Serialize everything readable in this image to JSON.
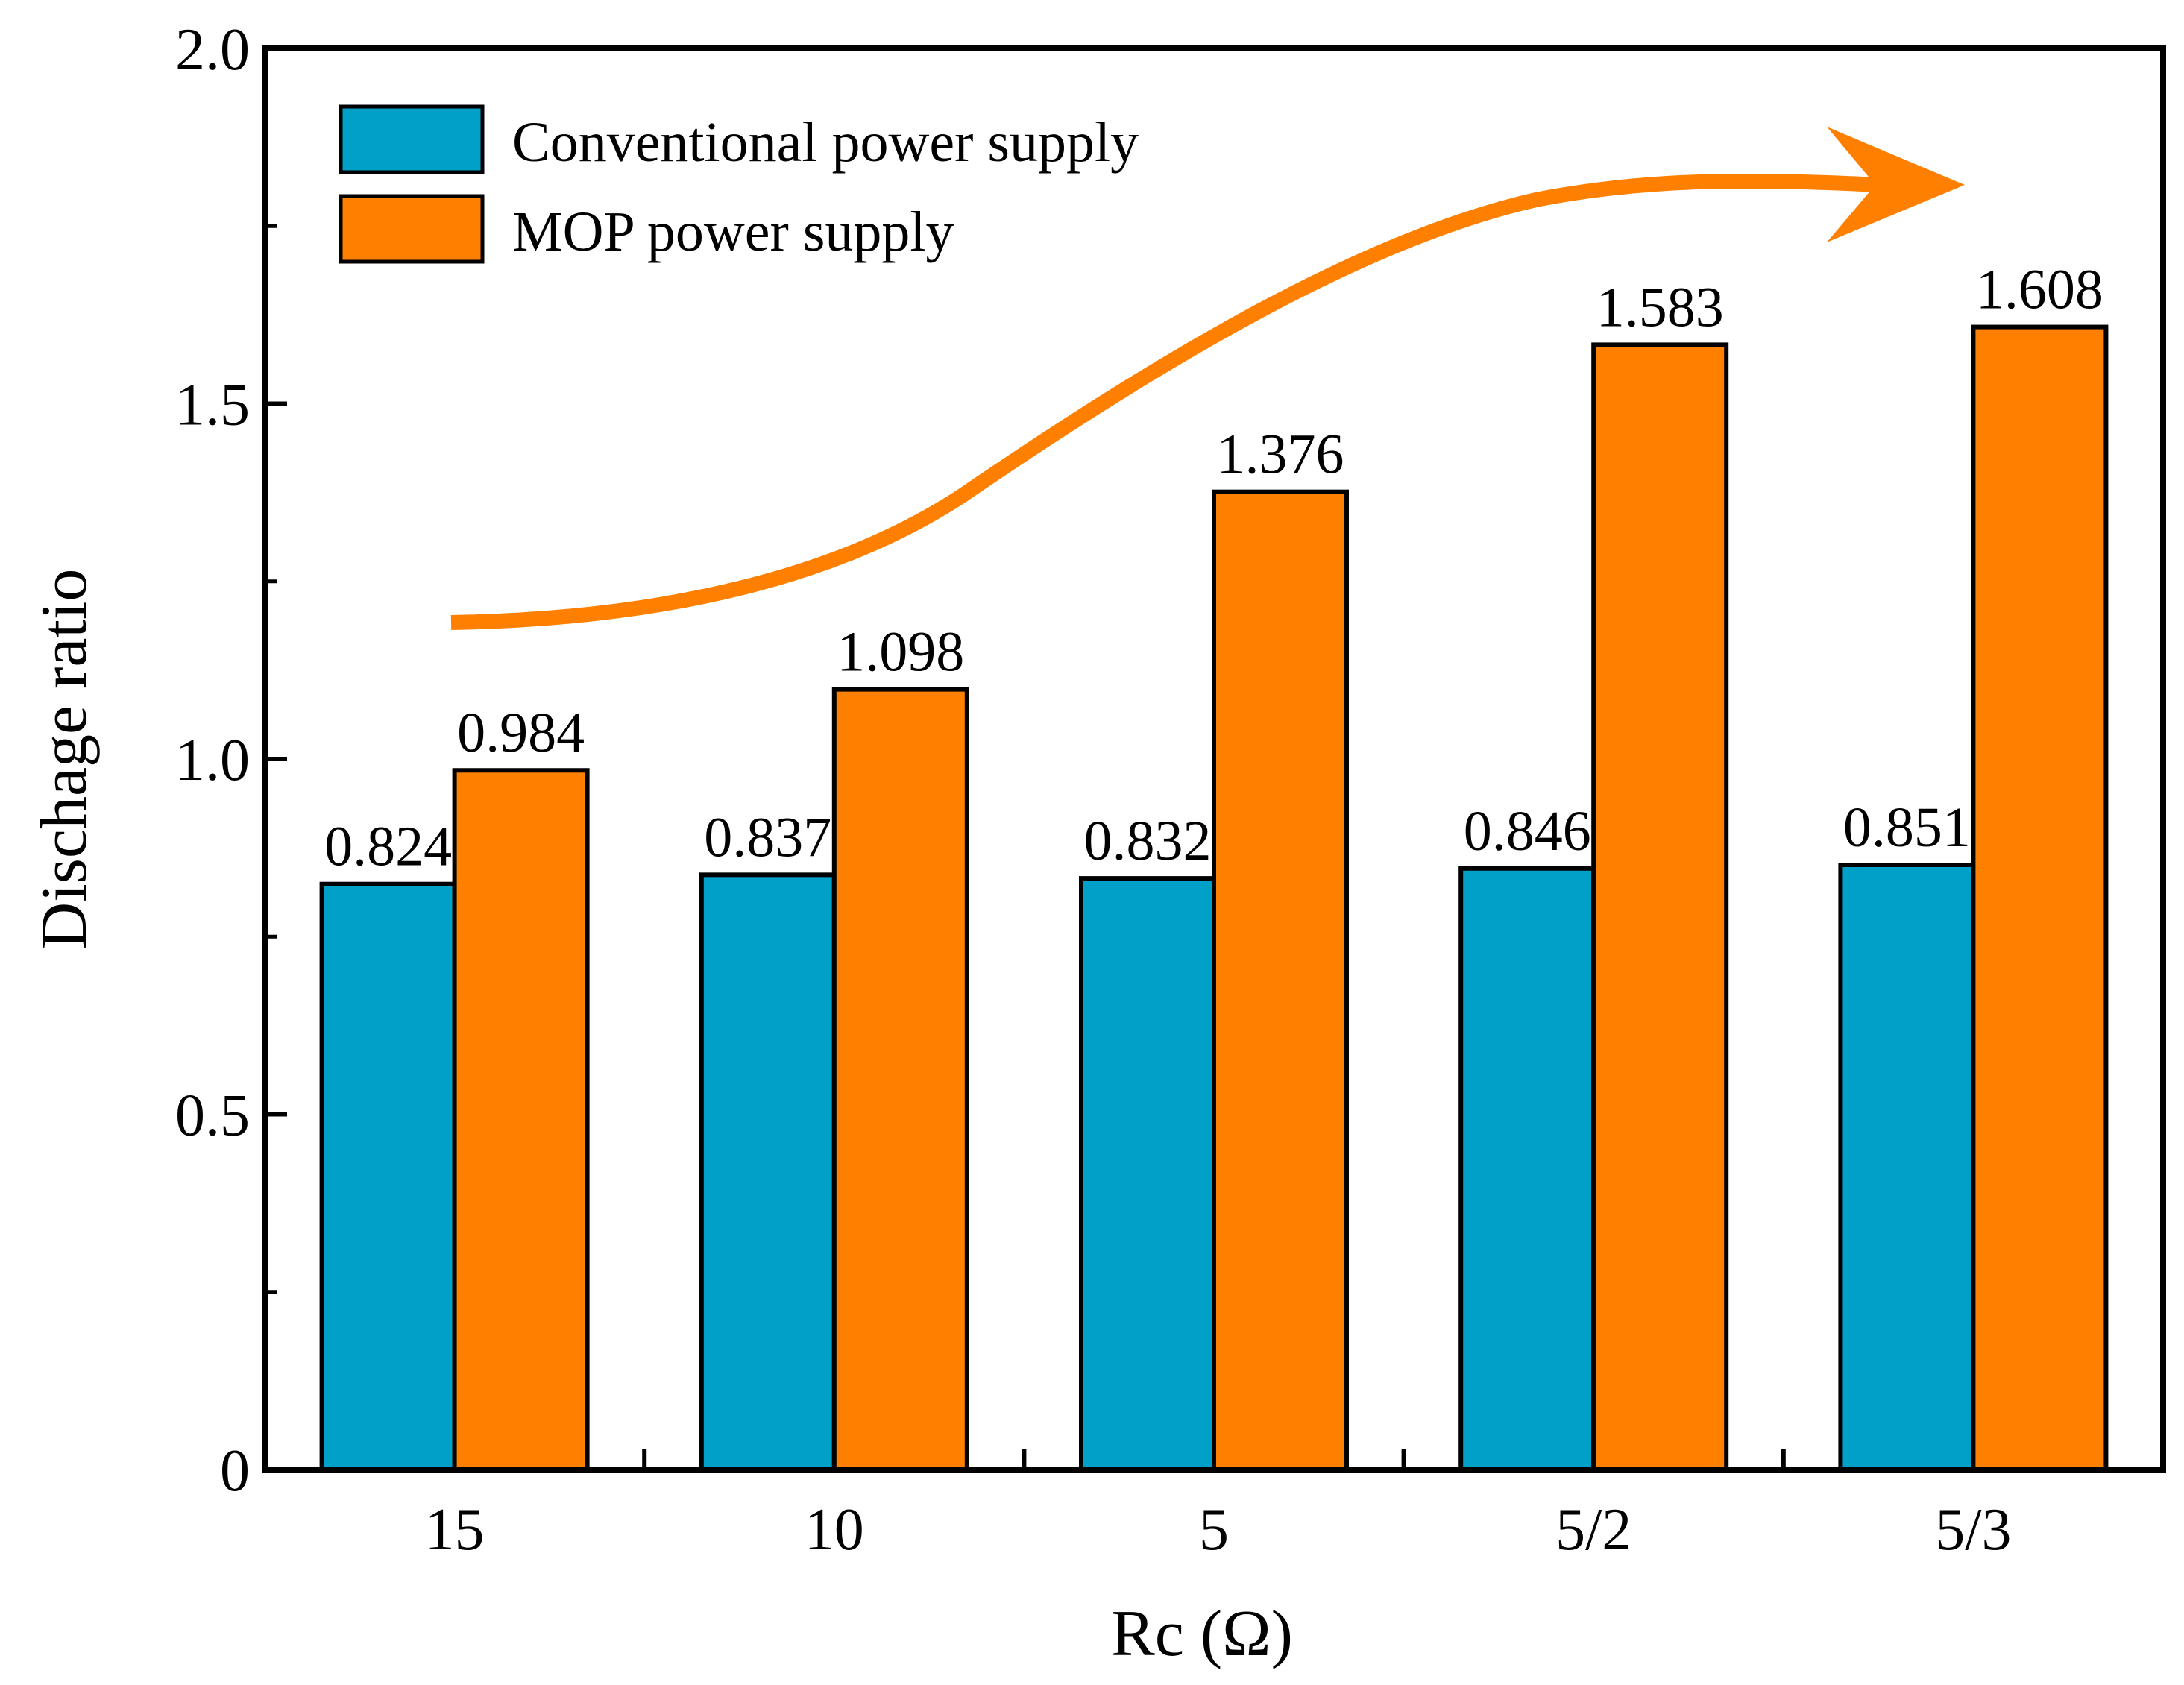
{
  "chart_data": {
    "type": "bar",
    "title": "",
    "xlabel": "Rc (Ω)",
    "ylabel": "Dischage ratio",
    "categories": [
      "15",
      "10",
      "5",
      "5/2",
      "5/3"
    ],
    "series": [
      {
        "name": "Conventional power supply",
        "color": "#00A0C8",
        "values": [
          0.824,
          0.837,
          0.832,
          0.846,
          0.851
        ],
        "labels": [
          "0.824",
          "0.837",
          "0.832",
          "0.846",
          "0.851"
        ]
      },
      {
        "name": "MOP power supply",
        "color": "#FF8000",
        "values": [
          0.984,
          1.098,
          1.376,
          1.583,
          1.608
        ],
        "labels": [
          "0.984",
          "1.098",
          "1.376",
          "1.583",
          "1.608"
        ]
      }
    ],
    "ylim": [
      0,
      2.0
    ],
    "yticks": [
      0,
      0.5,
      1.0,
      1.5,
      2.0
    ],
    "ytick_labels": [
      "0",
      "0.5",
      "1.0",
      "1.5",
      "2.0"
    ],
    "grid": false,
    "legend_position": "top-left",
    "annotations": [
      {
        "type": "arrow",
        "color": "#FF8000",
        "description": "increasing trend of MOP power supply"
      }
    ]
  }
}
